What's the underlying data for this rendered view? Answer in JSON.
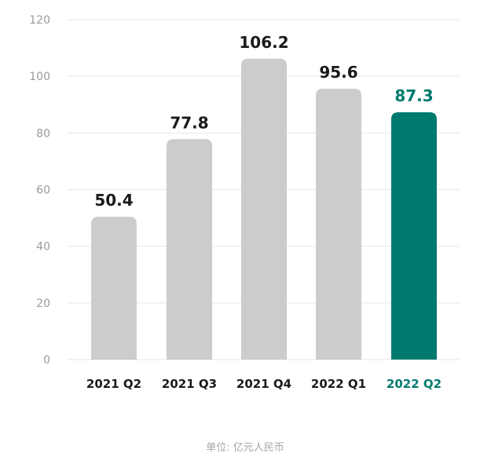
{
  "chart_data": {
    "type": "bar",
    "title": "",
    "xlabel": "",
    "ylabel": "",
    "categories": [
      "2021 Q2",
      "2021 Q3",
      "2021 Q4",
      "2022 Q1",
      "2022 Q2"
    ],
    "values": [
      50.4,
      77.8,
      106.2,
      95.6,
      87.3
    ],
    "value_labels": [
      "50.4",
      "77.8",
      "106.2",
      "95.6",
      "87.3"
    ],
    "ylim": [
      0,
      120
    ],
    "yticks": [
      0,
      20,
      40,
      60,
      80,
      100,
      120
    ],
    "grid": true,
    "highlight_index": 4,
    "unit_note": "单位:  亿元人民币"
  },
  "colors": {
    "bar": "#cccccc",
    "highlight": "#007a6e",
    "text": "#1a1a1a",
    "axis_text": "#9a9a9a",
    "grid": "#e6e6e6"
  }
}
